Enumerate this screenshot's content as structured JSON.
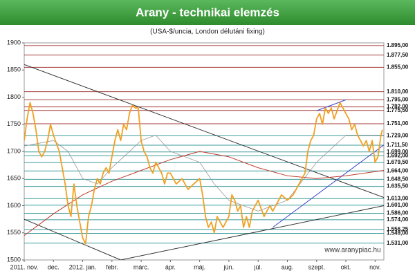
{
  "chart_data": {
    "type": "line",
    "title": "Arany - technikai elemzés",
    "subtitle": "(USA-$/uncia, London délutáni fixing)",
    "watermark": "www.aranypiac.hu",
    "ylim": [
      1500,
      1900
    ],
    "yticks": [
      1500,
      1550,
      1600,
      1650,
      1700,
      1750,
      1800,
      1850,
      1900
    ],
    "xlim": [
      0,
      12.3
    ],
    "xticks": [
      {
        "value": 0,
        "label": "2011. nov."
      },
      {
        "value": 1,
        "label": "dec."
      },
      {
        "value": 2,
        "label": "2012. jan."
      },
      {
        "value": 3,
        "label": "febr."
      },
      {
        "value": 4,
        "label": "márc."
      },
      {
        "value": 5,
        "label": "ápr."
      },
      {
        "value": 6,
        "label": "máj."
      },
      {
        "value": 7,
        "label": "jún."
      },
      {
        "value": 8,
        "label": "júl."
      },
      {
        "value": 9,
        "label": "aug."
      },
      {
        "value": 10,
        "label": "szept."
      },
      {
        "value": 11,
        "label": "okt."
      },
      {
        "value": 12,
        "label": "nov."
      }
    ],
    "levels": [
      {
        "value": 1895,
        "label": "1.895,00",
        "color": "#a33a3a"
      },
      {
        "value": 1877.5,
        "label": "1.877,50",
        "color": "#a33a3a"
      },
      {
        "value": 1855,
        "label": "1.855,00",
        "color": "#a33a3a"
      },
      {
        "value": 1810,
        "label": "1.810,00",
        "color": "#a33a3a"
      },
      {
        "value": 1795,
        "label": "1.795,00",
        "color": "#a33a3a"
      },
      {
        "value": 1782,
        "label": "1.782,00",
        "color": "#a33a3a"
      },
      {
        "value": 1775.5,
        "label": "1.775,50",
        "color": "#a33a3a"
      },
      {
        "value": 1751,
        "label": "1.751,00",
        "color": "#a33a3a"
      },
      {
        "value": 1729,
        "label": "1.729,00",
        "color": "#3a9a9a"
      },
      {
        "value": 1711.5,
        "label": "1.711,50",
        "color": "#3a9a9a"
      },
      {
        "value": 1699,
        "label": "1.699,00",
        "color": "#3a9a9a"
      },
      {
        "value": 1692,
        "label": "1.692,00",
        "color": "#3a9a9a"
      },
      {
        "value": 1679.5,
        "label": "1.679,50",
        "color": "#3a9a9a"
      },
      {
        "value": 1664,
        "label": "1.664,00",
        "color": "#3a9a9a"
      },
      {
        "value": 1648.5,
        "label": "1.648,50",
        "color": "#3a9a9a"
      },
      {
        "value": 1635.5,
        "label": "1.635,50",
        "color": "#3a9a9a"
      },
      {
        "value": 1613,
        "label": "1.613,00",
        "color": "#3a9a9a"
      },
      {
        "value": 1601,
        "label": "1.601,00",
        "color": "#3a9a9a"
      },
      {
        "value": 1586,
        "label": "1.586,00",
        "color": "#3a9a9a"
      },
      {
        "value": 1574,
        "label": "1.574,00",
        "color": "#3a9a9a"
      },
      {
        "value": 1556.25,
        "label": "1.556,25",
        "color": "#3a9a9a"
      },
      {
        "value": 1549,
        "label": "1.549,00",
        "color": "#3a9a9a"
      },
      {
        "value": 1531,
        "label": "1.531,00",
        "color": "#3a9a9a"
      }
    ],
    "series": [
      {
        "color": "#999999",
        "width": 0.8,
        "x": [
          0,
          1,
          1.5,
          2,
          2.5,
          3,
          4,
          4.5,
          5,
          6,
          6.5,
          7,
          8,
          9,
          10,
          11,
          12.3
        ],
        "values": [
          1710,
          1720,
          1700,
          1650,
          1640,
          1670,
          1720,
          1730,
          1700,
          1680,
          1640,
          1610,
          1590,
          1610,
          1680,
          1730,
          1730
        ]
      },
      {
        "color": "#c0392b",
        "width": 1,
        "x": [
          0,
          1,
          2,
          3,
          4,
          5,
          6,
          7,
          8,
          9,
          10,
          11,
          12.3
        ],
        "values": [
          1545,
          1585,
          1620,
          1645,
          1665,
          1685,
          1700,
          1690,
          1670,
          1655,
          1650,
          1655,
          1665
        ]
      },
      {
        "color": "#f0a020",
        "width": 1.8,
        "x": [
          0,
          0.1,
          0.2,
          0.3,
          0.4,
          0.5,
          0.6,
          0.7,
          0.8,
          0.9,
          1,
          1.2,
          1.4,
          1.5,
          1.6,
          1.7,
          1.8,
          1.9,
          2,
          2.1,
          2.2,
          2.3,
          2.4,
          2.5,
          2.6,
          2.7,
          2.8,
          2.9,
          3,
          3.1,
          3.2,
          3.3,
          3.4,
          3.5,
          3.6,
          3.7,
          3.8,
          3.9,
          4,
          4.1,
          4.2,
          4.3,
          4.4,
          4.5,
          4.6,
          4.7,
          4.8,
          4.9,
          5,
          5.1,
          5.2,
          5.4,
          5.6,
          5.8,
          6,
          6.1,
          6.2,
          6.3,
          6.4,
          6.5,
          6.6,
          6.8,
          7,
          7.1,
          7.2,
          7.3,
          7.4,
          7.5,
          7.6,
          7.7,
          7.8,
          8,
          8.2,
          8.4,
          8.5,
          8.6,
          8.8,
          9,
          9.2,
          9.4,
          9.6,
          9.7,
          9.8,
          9.9,
          10,
          10.1,
          10.2,
          10.3,
          10.4,
          10.5,
          10.6,
          10.8,
          10.9,
          11,
          11.1,
          11.2,
          11.3,
          11.4,
          11.5,
          11.6,
          11.7,
          11.8,
          11.9,
          12,
          12.1,
          12.2,
          12.25
        ],
        "values": [
          1720,
          1760,
          1790,
          1770,
          1740,
          1700,
          1690,
          1700,
          1720,
          1750,
          1730,
          1700,
          1640,
          1600,
          1580,
          1640,
          1600,
          1570,
          1540,
          1530,
          1580,
          1600,
          1630,
          1650,
          1640,
          1660,
          1670,
          1660,
          1690,
          1720,
          1740,
          1720,
          1750,
          1740,
          1770,
          1785,
          1780,
          1780,
          1720,
          1700,
          1690,
          1670,
          1660,
          1680,
          1670,
          1660,
          1640,
          1660,
          1660,
          1650,
          1640,
          1650,
          1630,
          1640,
          1650,
          1620,
          1580,
          1560,
          1570,
          1550,
          1580,
          1560,
          1580,
          1620,
          1610,
          1590,
          1600,
          1560,
          1580,
          1560,
          1590,
          1610,
          1580,
          1600,
          1590,
          1600,
          1620,
          1610,
          1620,
          1640,
          1660,
          1700,
          1720,
          1730,
          1760,
          1770,
          1750,
          1780,
          1770,
          1780,
          1760,
          1790,
          1780,
          1770,
          1760,
          1740,
          1750,
          1730,
          1720,
          1710,
          1720,
          1700,
          1720,
          1680,
          1690,
          1730,
          1740
        ]
      }
    ],
    "trendlines": [
      {
        "color": "#333333",
        "x": [
          0,
          12.3
        ],
        "values": [
          1860,
          1615
        ]
      },
      {
        "color": "#333333",
        "x": [
          0,
          3.3,
          12.3
        ],
        "values": [
          1575,
          1500,
          1600
        ]
      },
      {
        "color": "#3344cc",
        "x": [
          8.5,
          12.3
        ],
        "values": [
          1560,
          1712
        ]
      },
      {
        "color": "#3344cc",
        "x": [
          10,
          11
        ],
        "values": [
          1775,
          1795
        ]
      }
    ]
  }
}
